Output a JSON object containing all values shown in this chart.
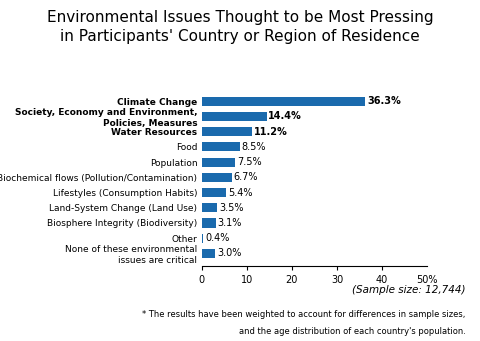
{
  "title_line1": "Environmental Issues Thought to be Most Pressing",
  "title_line2": "in Participants' Country or Region of Residence",
  "categories": [
    "None of these environmental\nissues are critical",
    "Other",
    "Biosphere Integrity (Biodiversity)",
    "Land-System Change (Land Use)",
    "Lifestyles (Consumption Habits)",
    "Biochemical flows (Pollution/Contamination)",
    "Population",
    "Food",
    "Water Resources",
    "Society, Economy and Environment,\nPolicies, Measures",
    "Climate Change"
  ],
  "values": [
    3.0,
    0.4,
    3.1,
    3.5,
    5.4,
    6.7,
    7.5,
    8.5,
    11.2,
    14.4,
    36.3
  ],
  "labels": [
    "3.0%",
    "0.4%",
    "3.1%",
    "3.5%",
    "5.4%",
    "6.7%",
    "7.5%",
    "8.5%",
    "11.2%",
    "14.4%",
    "36.3%"
  ],
  "bold_indices": [
    8,
    9,
    10
  ],
  "bar_color": "#1A6AAD",
  "xlim_max": 50,
  "xticks": [
    0,
    10,
    20,
    30,
    40
  ],
  "footnote_line1": "(Sample size: 12,744)",
  "footnote_line2": "* The results have been weighted to account for differences in sample sizes,",
  "footnote_line3": "and the age distribution of each country's population.",
  "title_fontsize": 11,
  "label_fontsize": 6.5,
  "value_fontsize": 7,
  "footnote_fontsize1": 7.5,
  "footnote_fontsize2": 6.0,
  "bg_color": "#FFFFFF"
}
